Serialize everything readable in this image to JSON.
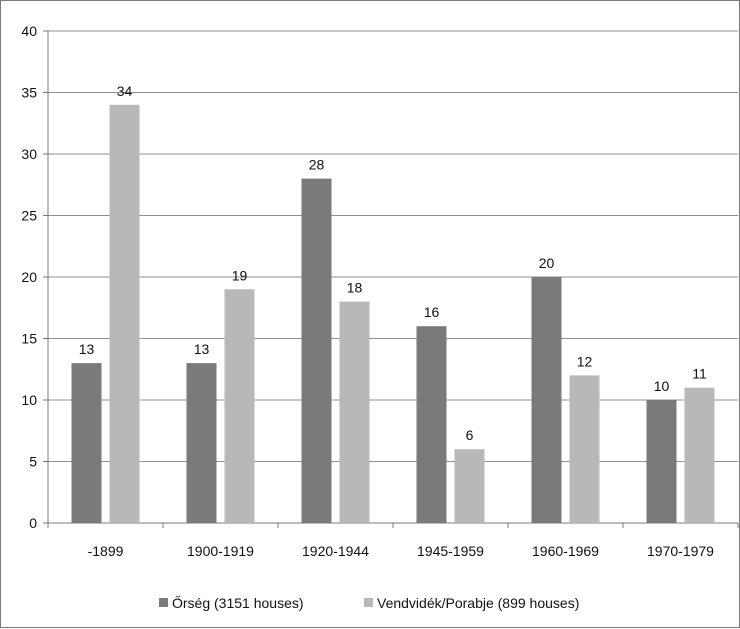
{
  "chart_data": {
    "type": "bar",
    "categories": [
      "-1899",
      "1900-1919",
      "1920-1944",
      "1945-1959",
      "1960-1969",
      "1970-1979"
    ],
    "series": [
      {
        "name": "Őrség (3151 houses)",
        "values": [
          13,
          13,
          28,
          16,
          20,
          10
        ],
        "color": "#7a7a7a"
      },
      {
        "name": "Vendvidék/Porabje (899 houses)",
        "values": [
          34,
          19,
          18,
          6,
          12,
          11
        ],
        "color": "#b8b8b8"
      }
    ],
    "ylim": [
      0,
      40
    ],
    "yticks": [
      0,
      5,
      10,
      15,
      20,
      25,
      30,
      35,
      40
    ],
    "grid": true,
    "legend_position": "bottom",
    "data_labels": true,
    "title": "",
    "xlabel": "",
    "ylabel": ""
  }
}
